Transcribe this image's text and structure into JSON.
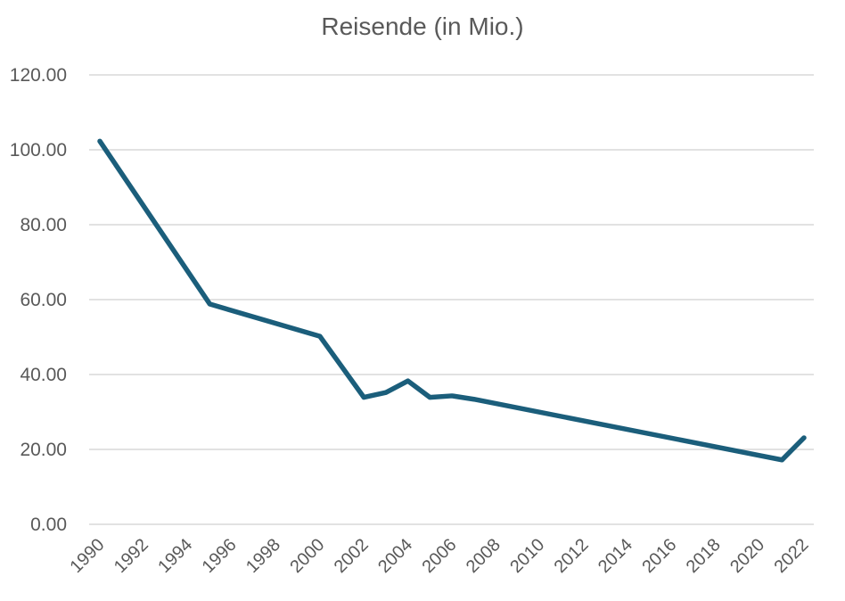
{
  "chart_data": {
    "type": "line",
    "title": "Reisende (in Mio.)",
    "xlabel": "",
    "ylabel": "",
    "xlim": [
      1990,
      2022
    ],
    "ylim": [
      0,
      120
    ],
    "x_ticks": [
      "1990",
      "1992",
      "1994",
      "1996",
      "1998",
      "2000",
      "2002",
      "2004",
      "2006",
      "2008",
      "2010",
      "2012",
      "2014",
      "2016",
      "2018",
      "2020",
      "2022"
    ],
    "y_ticks": [
      "0.00",
      "20.00",
      "40.00",
      "60.00",
      "80.00",
      "100.00",
      "120.00"
    ],
    "grid": true,
    "legend": "none",
    "colors": {
      "line": "#1b5e7b",
      "grid": "#d9d9d9",
      "text": "#595959"
    },
    "series": [
      {
        "x": [
          1990,
          1995,
          2000,
          2002,
          2003,
          2004,
          2005,
          2006,
          2007,
          2021,
          2022
        ],
        "values": [
          102.3,
          58.8,
          50.2,
          33.9,
          35.2,
          38.3,
          33.9,
          34.3,
          33.4,
          17.2,
          23.1
        ]
      }
    ]
  }
}
